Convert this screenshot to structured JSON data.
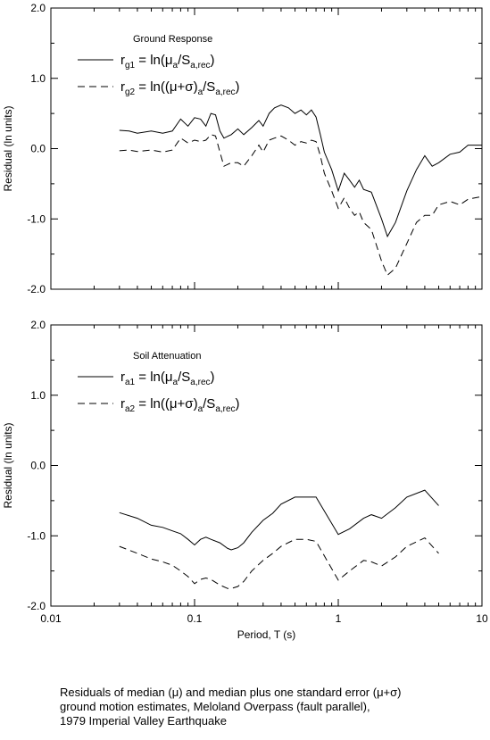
{
  "chart_data": [
    {
      "type": "line",
      "annotation": "Ground Response",
      "ylabel": "Residual (ln units)",
      "xlabel": "",
      "xscale": "log",
      "xlim": [
        0.01,
        10
      ],
      "ylim": [
        -2.0,
        2.0
      ],
      "ytick_labels": [
        "2.0",
        "1.0",
        "0.0",
        "-1.0",
        "-2.0"
      ],
      "yticks": [
        2.0,
        1.0,
        0.0,
        -1.0,
        -2.0
      ],
      "xtick_labels": [],
      "legend_placement": "top-left",
      "series": [
        {
          "legend_parts": [
            "r",
            "g1",
            " = ln(",
            "μ",
            "a",
            "/S",
            "a,rec",
            ")"
          ],
          "style": "solid",
          "points": [
            [
              0.03,
              0.26
            ],
            [
              0.035,
              0.25
            ],
            [
              0.04,
              0.22
            ],
            [
              0.05,
              0.25
            ],
            [
              0.06,
              0.22
            ],
            [
              0.07,
              0.25
            ],
            [
              0.08,
              0.42
            ],
            [
              0.09,
              0.32
            ],
            [
              0.1,
              0.44
            ],
            [
              0.11,
              0.42
            ],
            [
              0.12,
              0.32
            ],
            [
              0.13,
              0.5
            ],
            [
              0.14,
              0.48
            ],
            [
              0.15,
              0.25
            ],
            [
              0.16,
              0.15
            ],
            [
              0.18,
              0.2
            ],
            [
              0.2,
              0.28
            ],
            [
              0.22,
              0.2
            ],
            [
              0.25,
              0.3
            ],
            [
              0.28,
              0.4
            ],
            [
              0.3,
              0.32
            ],
            [
              0.33,
              0.5
            ],
            [
              0.36,
              0.58
            ],
            [
              0.4,
              0.62
            ],
            [
              0.45,
              0.58
            ],
            [
              0.5,
              0.5
            ],
            [
              0.55,
              0.55
            ],
            [
              0.6,
              0.48
            ],
            [
              0.65,
              0.55
            ],
            [
              0.7,
              0.45
            ],
            [
              0.75,
              0.2
            ],
            [
              0.8,
              -0.05
            ],
            [
              0.9,
              -0.3
            ],
            [
              1.0,
              -0.6
            ],
            [
              1.1,
              -0.35
            ],
            [
              1.2,
              -0.45
            ],
            [
              1.3,
              -0.55
            ],
            [
              1.4,
              -0.45
            ],
            [
              1.5,
              -0.58
            ],
            [
              1.7,
              -0.62
            ],
            [
              2.0,
              -1.0
            ],
            [
              2.2,
              -1.25
            ],
            [
              2.5,
              -1.05
            ],
            [
              3.0,
              -0.6
            ],
            [
              3.5,
              -0.3
            ],
            [
              4.0,
              -0.1
            ],
            [
              4.5,
              -0.25
            ],
            [
              5.0,
              -0.2
            ],
            [
              6.0,
              -0.08
            ],
            [
              7.0,
              -0.05
            ],
            [
              8.0,
              0.05
            ],
            [
              10.0,
              0.05
            ]
          ]
        },
        {
          "legend_parts": [
            "r",
            "g2",
            " = ln((",
            "μ+σ",
            ")",
            "a",
            "/S",
            "a,rec",
            ")"
          ],
          "style": "dashed",
          "points": [
            [
              0.03,
              -0.03
            ],
            [
              0.035,
              -0.02
            ],
            [
              0.04,
              -0.04
            ],
            [
              0.05,
              -0.02
            ],
            [
              0.06,
              -0.05
            ],
            [
              0.07,
              -0.02
            ],
            [
              0.08,
              0.15
            ],
            [
              0.09,
              0.08
            ],
            [
              0.1,
              0.12
            ],
            [
              0.11,
              0.1
            ],
            [
              0.12,
              0.12
            ],
            [
              0.13,
              0.2
            ],
            [
              0.14,
              0.18
            ],
            [
              0.15,
              -0.05
            ],
            [
              0.16,
              -0.25
            ],
            [
              0.18,
              -0.2
            ],
            [
              0.2,
              -0.2
            ],
            [
              0.22,
              -0.25
            ],
            [
              0.25,
              -0.1
            ],
            [
              0.28,
              0.05
            ],
            [
              0.3,
              -0.05
            ],
            [
              0.33,
              0.12
            ],
            [
              0.36,
              0.15
            ],
            [
              0.4,
              0.18
            ],
            [
              0.45,
              0.12
            ],
            [
              0.5,
              0.05
            ],
            [
              0.55,
              0.1
            ],
            [
              0.6,
              0.08
            ],
            [
              0.65,
              0.12
            ],
            [
              0.7,
              0.1
            ],
            [
              0.75,
              -0.1
            ],
            [
              0.8,
              -0.35
            ],
            [
              0.9,
              -0.6
            ],
            [
              1.0,
              -0.85
            ],
            [
              1.1,
              -0.7
            ],
            [
              1.2,
              -0.85
            ],
            [
              1.3,
              -0.95
            ],
            [
              1.4,
              -0.9
            ],
            [
              1.5,
              -1.05
            ],
            [
              1.7,
              -1.15
            ],
            [
              2.0,
              -1.6
            ],
            [
              2.2,
              -1.8
            ],
            [
              2.5,
              -1.7
            ],
            [
              3.0,
              -1.35
            ],
            [
              3.5,
              -1.05
            ],
            [
              4.0,
              -0.95
            ],
            [
              4.5,
              -0.95
            ],
            [
              5.0,
              -0.8
            ],
            [
              6.0,
              -0.75
            ],
            [
              7.0,
              -0.8
            ],
            [
              8.0,
              -0.72
            ],
            [
              10.0,
              -0.68
            ]
          ]
        }
      ]
    },
    {
      "type": "line",
      "annotation": "Soil Attenuation",
      "ylabel": "Residual (ln units)",
      "xlabel": "Period, T (s)",
      "xscale": "log",
      "xlim": [
        0.01,
        10
      ],
      "ylim": [
        -2.0,
        2.0
      ],
      "ytick_labels": [
        "2.0",
        "1.0",
        "0.0",
        "-1.0",
        "-2.0"
      ],
      "yticks": [
        2.0,
        1.0,
        0.0,
        -1.0,
        -2.0
      ],
      "xtick_labels": [
        "0.01",
        "0.1",
        "1",
        "10"
      ],
      "xticks": [
        0.01,
        0.1,
        1,
        10
      ],
      "legend_placement": "top-left",
      "series": [
        {
          "legend_parts": [
            "r",
            "a1",
            " = ln(",
            "μ",
            "a",
            "/S",
            "a,rec",
            ")"
          ],
          "style": "solid",
          "points": [
            [
              0.03,
              -0.67
            ],
            [
              0.04,
              -0.75
            ],
            [
              0.05,
              -0.85
            ],
            [
              0.06,
              -0.88
            ],
            [
              0.07,
              -0.93
            ],
            [
              0.08,
              -0.97
            ],
            [
              0.09,
              -1.05
            ],
            [
              0.1,
              -1.13
            ],
            [
              0.11,
              -1.05
            ],
            [
              0.12,
              -1.02
            ],
            [
              0.13,
              -1.05
            ],
            [
              0.15,
              -1.1
            ],
            [
              0.17,
              -1.18
            ],
            [
              0.18,
              -1.2
            ],
            [
              0.2,
              -1.17
            ],
            [
              0.22,
              -1.1
            ],
            [
              0.25,
              -0.95
            ],
            [
              0.3,
              -0.78
            ],
            [
              0.35,
              -0.68
            ],
            [
              0.4,
              -0.55
            ],
            [
              0.5,
              -0.45
            ],
            [
              0.6,
              -0.45
            ],
            [
              0.7,
              -0.45
            ],
            [
              1.0,
              -0.98
            ],
            [
              1.2,
              -0.9
            ],
            [
              1.5,
              -0.75
            ],
            [
              1.7,
              -0.7
            ],
            [
              2.0,
              -0.75
            ],
            [
              2.5,
              -0.6
            ],
            [
              3.0,
              -0.45
            ],
            [
              4.0,
              -0.35
            ],
            [
              5.0,
              -0.57
            ]
          ]
        },
        {
          "legend_parts": [
            "r",
            "a2",
            " = ln((",
            "μ+σ",
            ")",
            "a",
            "/S",
            "a,rec",
            ")"
          ],
          "style": "dashed",
          "points": [
            [
              0.03,
              -1.15
            ],
            [
              0.04,
              -1.25
            ],
            [
              0.05,
              -1.33
            ],
            [
              0.06,
              -1.37
            ],
            [
              0.07,
              -1.42
            ],
            [
              0.08,
              -1.5
            ],
            [
              0.09,
              -1.58
            ],
            [
              0.1,
              -1.68
            ],
            [
              0.11,
              -1.62
            ],
            [
              0.12,
              -1.6
            ],
            [
              0.13,
              -1.62
            ],
            [
              0.15,
              -1.7
            ],
            [
              0.17,
              -1.75
            ],
            [
              0.18,
              -1.75
            ],
            [
              0.2,
              -1.72
            ],
            [
              0.22,
              -1.65
            ],
            [
              0.25,
              -1.5
            ],
            [
              0.3,
              -1.35
            ],
            [
              0.35,
              -1.25
            ],
            [
              0.4,
              -1.15
            ],
            [
              0.5,
              -1.05
            ],
            [
              0.6,
              -1.05
            ],
            [
              0.7,
              -1.08
            ],
            [
              1.0,
              -1.63
            ],
            [
              1.2,
              -1.5
            ],
            [
              1.5,
              -1.35
            ],
            [
              1.7,
              -1.37
            ],
            [
              2.0,
              -1.43
            ],
            [
              2.5,
              -1.3
            ],
            [
              3.0,
              -1.15
            ],
            [
              4.0,
              -1.03
            ],
            [
              5.0,
              -1.25
            ]
          ]
        }
      ]
    }
  ],
  "caption": "Residuals of median (μ) and median plus one standard error (μ+σ)\nground motion estimates, Meloland Overpass (fault parallel),\n1979 Imperial Valley Earthquake"
}
